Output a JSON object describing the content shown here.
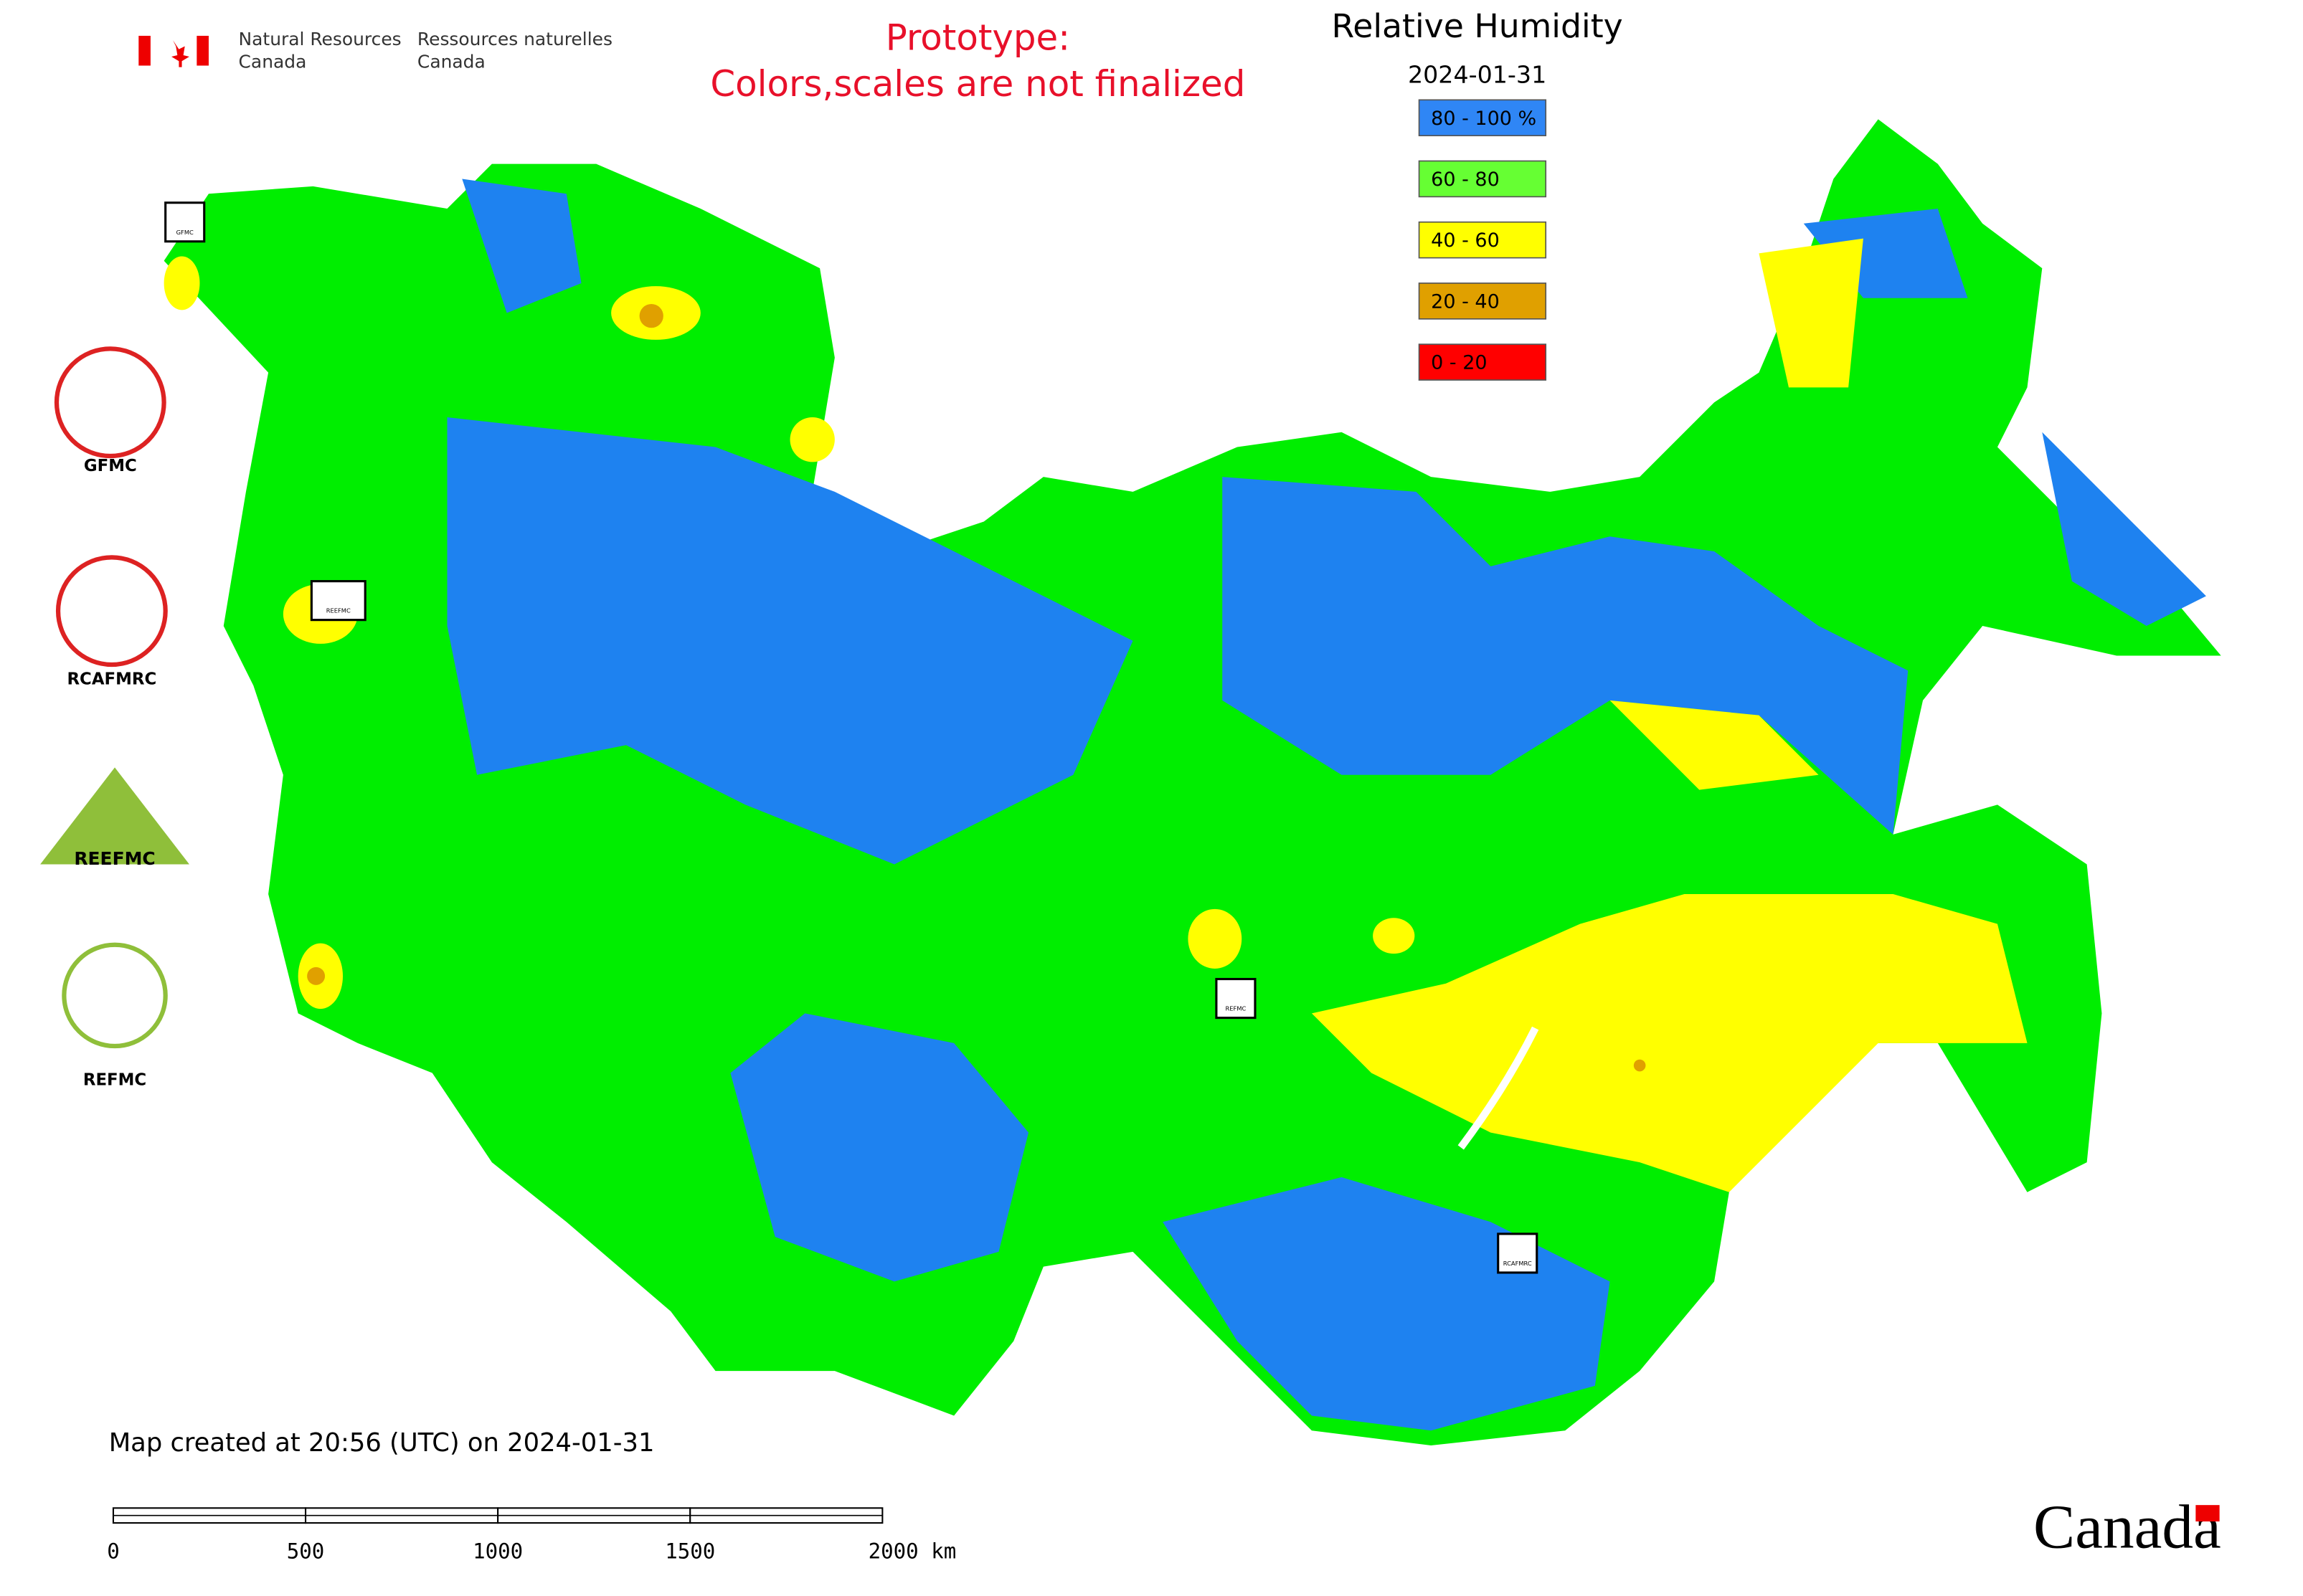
{
  "header": {
    "org_en": [
      "Natural Resources",
      "Canada"
    ],
    "org_fr": [
      "Ressources naturelles",
      "Canada"
    ],
    "notice": [
      "Prototype:",
      "Colors,scales are not finalized"
    ]
  },
  "legend": {
    "title": "Relative Humidity",
    "date": "2024-01-31",
    "items": [
      {
        "label": "80 - 100 %",
        "color": "#2f86f5"
      },
      {
        "label": "60 - 80",
        "color": "#66ff33"
      },
      {
        "label": "40 - 60",
        "color": "#ffff00"
      },
      {
        "label": "20 - 40",
        "color": "#e0a000"
      },
      {
        "label": "0 - 20",
        "color": "#ff0000"
      }
    ]
  },
  "logos": [
    "GFMC",
    "RCAFMRC",
    "REEFMC",
    "REFMC"
  ],
  "map_markers": [
    "GFMC",
    "REEFMC",
    "REFMC",
    "RCAFMRC"
  ],
  "footer": {
    "created": "Map created at 20:56 (UTC) on 2024-01-31",
    "scale_labels": [
      "0",
      "500",
      "1000",
      "1500",
      "2000 km"
    ],
    "wordmark": "Canada"
  }
}
